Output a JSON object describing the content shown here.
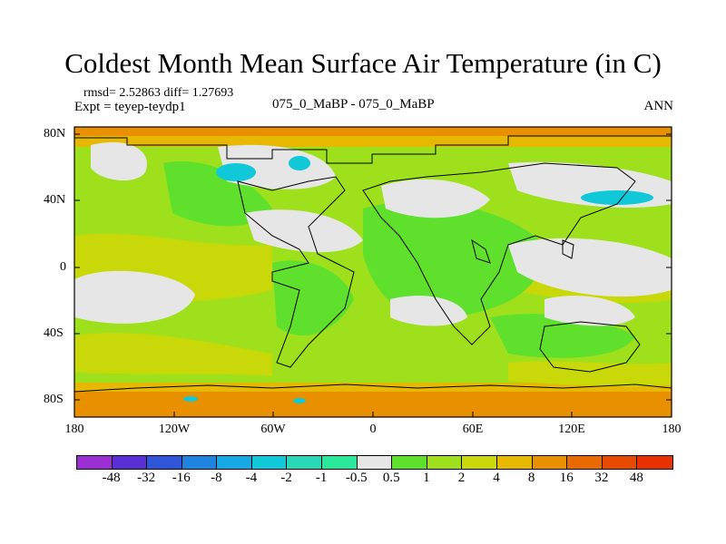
{
  "title": "Coldest Month Mean Surface Air Temperature (in C)",
  "stats_text": "rmsd= 2.52863 diff= 1.27693",
  "experiment_text": "Expt = teyep-teydp1",
  "comparison_text": "075_0_MaBP - 075_0_MaBP",
  "season_label": "ANN",
  "lat_labels": [
    "80N",
    "40N",
    "0",
    "40S",
    "80S"
  ],
  "lon_labels": [
    "180",
    "120W",
    "60W",
    "0",
    "60E",
    "120E",
    "180"
  ],
  "colorbar": {
    "labels": [
      "-48",
      "-32",
      "-16",
      "-8",
      "-4",
      "-2",
      "-1",
      "-0.5",
      "0.5",
      "1",
      "2",
      "4",
      "8",
      "16",
      "32",
      "48"
    ],
    "colors": [
      "#9b2fd4",
      "#5a2fd6",
      "#2f55d8",
      "#1f84e0",
      "#17a9e6",
      "#11c8d9",
      "#2ad7b7",
      "#2ae89a",
      "#e6e6e6",
      "#5fe02c",
      "#9ee01c",
      "#c9d808",
      "#e6b800",
      "#e89000",
      "#e86a00",
      "#e84a00",
      "#e83000"
    ]
  },
  "chart_data": {
    "type": "heatmap",
    "title": "Coldest Month Mean Surface Air Temperature (in C)",
    "x_range": [
      -180,
      180
    ],
    "y_range": [
      -90,
      90
    ],
    "xlabel_ticks": [
      "180",
      "120W",
      "60W",
      "0",
      "60E",
      "120E",
      "180"
    ],
    "ylabel_ticks": [
      "80N",
      "40N",
      "0",
      "40S",
      "80S"
    ],
    "contour_levels": [
      -48,
      -32,
      -16,
      -8,
      -4,
      -2,
      -1,
      -0.5,
      0.5,
      1,
      2,
      4,
      8,
      16,
      32,
      48
    ],
    "rmsd": 2.52863,
    "diff": 1.27693
  }
}
